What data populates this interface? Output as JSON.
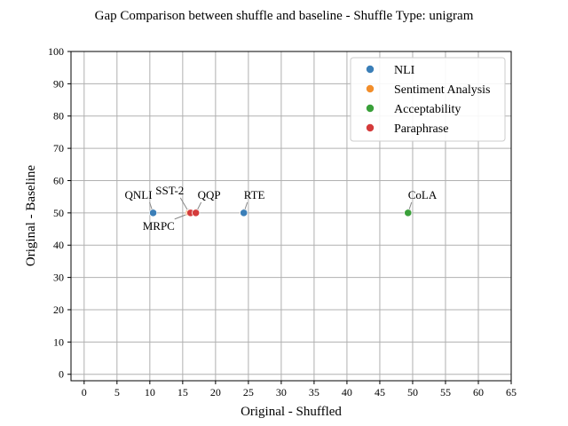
{
  "chart_data": {
    "type": "scatter",
    "title": "Gap Comparison between shuffle and baseline - Shuffle Type: unigram",
    "xlabel": "Original - Shuffled",
    "ylabel": "Original - Baseline",
    "xlim": [
      -2,
      65
    ],
    "ylim": [
      -2,
      100
    ],
    "xticks": [
      0,
      5,
      10,
      15,
      20,
      25,
      30,
      35,
      40,
      45,
      50,
      55,
      60,
      65
    ],
    "yticks": [
      0,
      10,
      20,
      30,
      40,
      50,
      60,
      70,
      80,
      90,
      100
    ],
    "grid": true,
    "legend_position": "top-right",
    "series": [
      {
        "name": "NLI",
        "color": "#3b7fb8",
        "points": [
          {
            "label": "QNLI",
            "x": 10.5,
            "y": 50
          },
          {
            "label": "RTE",
            "x": 24.3,
            "y": 50
          }
        ]
      },
      {
        "name": "Sentiment Analysis",
        "color": "#f28e2b",
        "points": [
          {
            "label": "SST-2",
            "x": 16.0,
            "y": 50
          }
        ]
      },
      {
        "name": "Acceptability",
        "color": "#3aa03a",
        "points": [
          {
            "label": "CoLA",
            "x": 49.3,
            "y": 50
          }
        ]
      },
      {
        "name": "Paraphrase",
        "color": "#d43b3b",
        "points": [
          {
            "label": "MRPC",
            "x": 16.2,
            "y": 50
          },
          {
            "label": "QQP",
            "x": 17.0,
            "y": 50
          }
        ]
      }
    ]
  }
}
